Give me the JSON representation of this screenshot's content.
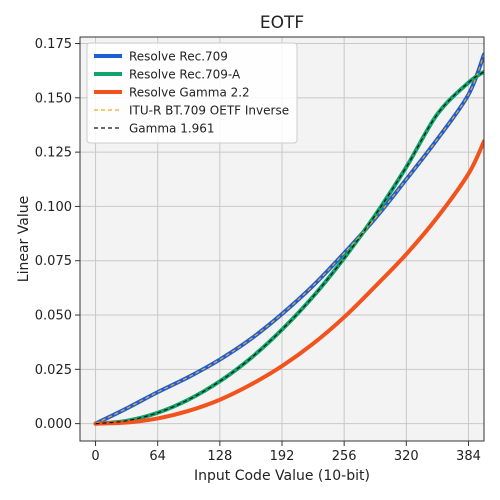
{
  "chart_data": {
    "type": "line",
    "title": "EOTF",
    "xlabel": "Input Code Value (10-bit)",
    "ylabel": "Linear Value",
    "xlim": [
      -16,
      400
    ],
    "ylim": [
      -0.008,
      0.178
    ],
    "xticks": [
      0,
      64,
      128,
      192,
      256,
      320,
      384
    ],
    "xtick_labels": [
      "0",
      "64",
      "128",
      "192",
      "256",
      "320",
      "384"
    ],
    "yticks": [
      0.0,
      0.025,
      0.05,
      0.075,
      0.1,
      0.125,
      0.15,
      0.175
    ],
    "ytick_labels": [
      "0.000",
      "0.025",
      "0.050",
      "0.075",
      "0.100",
      "0.125",
      "0.150",
      "0.175"
    ],
    "grid": true,
    "legend_position": "top-left",
    "series": [
      {
        "name": "Resolve Rec.709",
        "color": "#1f5fd6",
        "style": "solid",
        "x": [
          0,
          32,
          64,
          96,
          128,
          160,
          192,
          224,
          256,
          288,
          320,
          352,
          384,
          400
        ],
        "y": [
          0.0,
          0.007,
          0.0145,
          0.0215,
          0.0295,
          0.039,
          0.0505,
          0.0635,
          0.0785,
          0.0945,
          0.1125,
          0.131,
          0.1515,
          0.17
        ]
      },
      {
        "name": "Resolve Rec.709-A",
        "color": "#10a36b",
        "style": "solid",
        "x": [
          0,
          32,
          64,
          96,
          128,
          160,
          192,
          224,
          256,
          288,
          320,
          352,
          384,
          400
        ],
        "y": [
          0.0,
          0.0013,
          0.005,
          0.0111,
          0.0195,
          0.0302,
          0.0433,
          0.0585,
          0.0762,
          0.096,
          0.1181,
          0.1425,
          0.157,
          0.162
        ]
      },
      {
        "name": "Resolve Gamma 2.2",
        "color": "#f2521c",
        "style": "solid",
        "x": [
          0,
          32,
          64,
          96,
          128,
          160,
          192,
          224,
          256,
          288,
          320,
          352,
          384,
          400
        ],
        "y": [
          0.0,
          0.0005,
          0.0024,
          0.0059,
          0.011,
          0.018,
          0.0265,
          0.0368,
          0.049,
          0.0632,
          0.078,
          0.095,
          0.115,
          0.13
        ]
      },
      {
        "name": "ITU-R BT.709 OETF Inverse",
        "color": "#f5a623",
        "style": "dashed",
        "x": [
          0,
          32,
          64,
          96,
          128,
          160,
          192,
          224,
          256,
          288,
          320,
          352,
          384,
          400
        ],
        "y": [
          0.0,
          0.007,
          0.0145,
          0.0215,
          0.0295,
          0.039,
          0.0505,
          0.0635,
          0.0785,
          0.0945,
          0.1125,
          0.131,
          0.1515,
          0.17
        ]
      },
      {
        "name": "Gamma 1.961",
        "color": "#111111",
        "style": "dashed",
        "x": [
          0,
          32,
          64,
          96,
          128,
          160,
          192,
          224,
          256,
          288,
          320,
          352,
          384,
          400
        ],
        "y": [
          0.0,
          0.0013,
          0.005,
          0.0111,
          0.0195,
          0.0302,
          0.0433,
          0.0585,
          0.0762,
          0.096,
          0.1181,
          0.1425,
          0.157,
          0.162
        ]
      }
    ]
  }
}
